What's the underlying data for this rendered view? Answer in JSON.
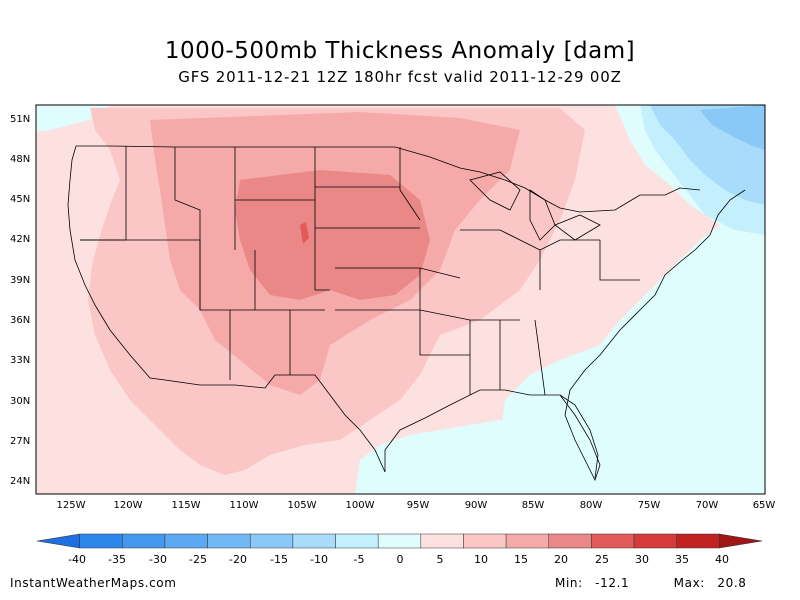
{
  "title": "1000-500mb Thickness Anomaly [dam]",
  "subtitle": "GFS 2011-12-21 12Z 180hr fcst valid 2011-12-29 00Z",
  "map": {
    "lat_labels": [
      "51N",
      "48N",
      "45N",
      "42N",
      "39N",
      "36N",
      "33N",
      "30N",
      "27N",
      "24N"
    ],
    "lon_labels": [
      "125W",
      "120W",
      "115W",
      "110W",
      "105W",
      "100W",
      "95W",
      "90W",
      "85W",
      "80W",
      "75W",
      "70W",
      "65W"
    ]
  },
  "colorbar": {
    "ticks": [
      "-40",
      "-35",
      "-30",
      "-25",
      "-20",
      "-15",
      "-10",
      "-5",
      "0",
      "5",
      "10",
      "15",
      "20",
      "25",
      "30",
      "35",
      "40"
    ],
    "colors": [
      "#1e6fe0",
      "#2d86ea",
      "#4499ee",
      "#5aa9f2",
      "#72b8f5",
      "#8ac8f8",
      "#a8dcfa",
      "#c3f0fc",
      "#e0fdfd",
      "#fde1e1",
      "#fbc6c6",
      "#f5a9a9",
      "#ea8888",
      "#e35a5a",
      "#d63a3a",
      "#c22222",
      "#a01616"
    ]
  },
  "footer": {
    "source": "InstantWeatherMaps.com",
    "min_label": "Min:",
    "min_value": "-12.1",
    "max_label": "Max:",
    "max_value": "20.8"
  }
}
